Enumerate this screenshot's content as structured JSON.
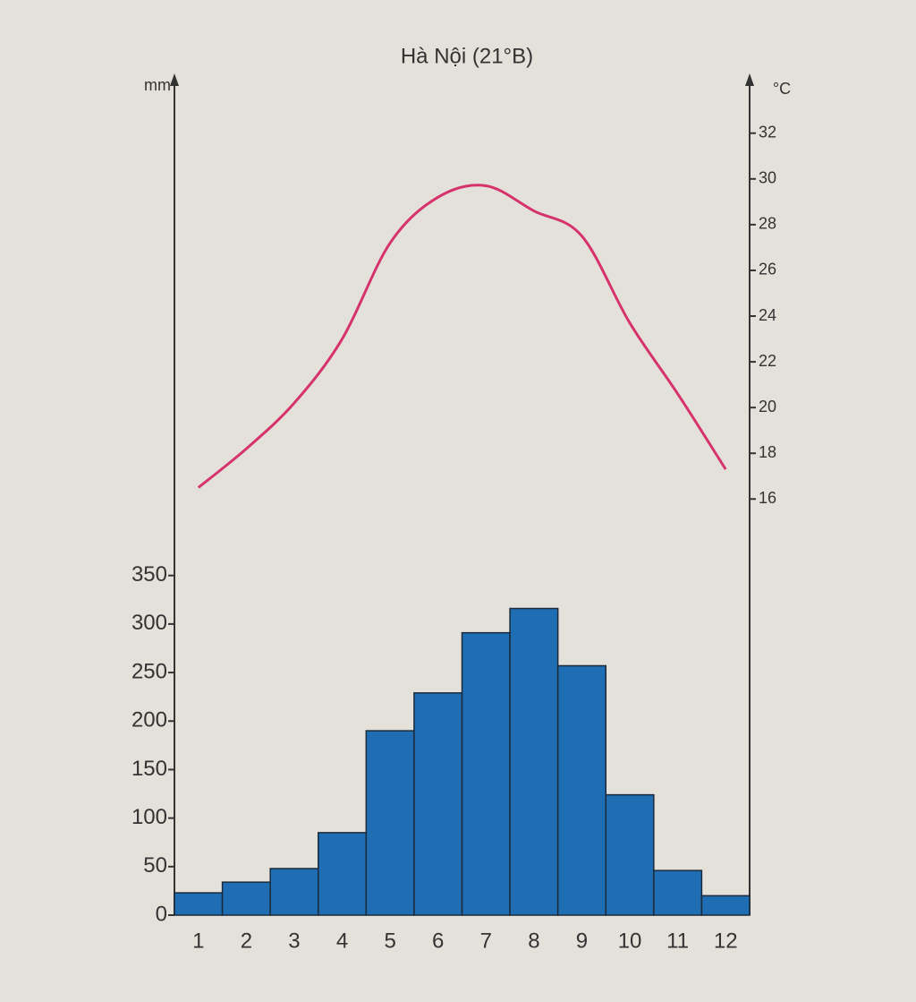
{
  "chart_data": {
    "type": "bar-line",
    "title": "Hà Nội (21°B)",
    "y_label": "mm",
    "y2_label": "°C",
    "categories": [
      "1",
      "2",
      "3",
      "4",
      "5",
      "6",
      "7",
      "8",
      "9",
      "10",
      "11",
      "12"
    ],
    "series": [
      {
        "type": "bar",
        "color": "#1f6db3",
        "values": [
          23,
          34,
          48,
          85,
          190,
          229,
          291,
          316,
          257,
          124,
          46,
          20
        ]
      },
      {
        "type": "line",
        "axis": "y2",
        "color": "#d6336c",
        "values": [
          16.5,
          18.2,
          20.2,
          23,
          27.2,
          29.2,
          29.7,
          28.6,
          27.5,
          23.7,
          20.6,
          17.3
        ]
      }
    ],
    "ylim": [
      0,
      860
    ],
    "yticks": [
      0,
      50,
      100,
      150,
      200,
      250,
      300,
      350
    ],
    "y2lim": [
      -2.2,
      34.3
    ],
    "y2ticks": [
      16,
      18,
      20,
      22,
      24,
      26,
      28,
      30,
      32
    ],
    "grid": false
  }
}
